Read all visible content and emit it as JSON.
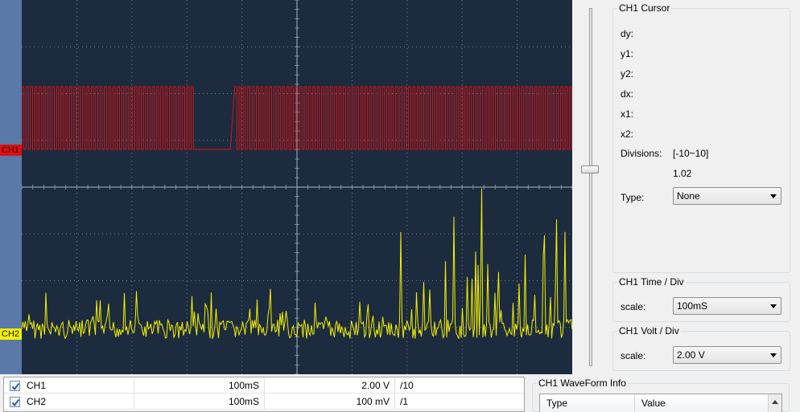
{
  "scope": {
    "channels": [
      {
        "name": "CH1",
        "color": "#e01010"
      },
      {
        "name": "CH2",
        "color": "#f4f000"
      }
    ],
    "background_color": "#1c2b3e",
    "grid_color": "#8aa0b8"
  },
  "cursor_panel": {
    "title": "CH1 Cursor",
    "labels": {
      "dy": "dy:",
      "y1": "y1:",
      "y2": "y2:",
      "dx": "dx:",
      "x1": "x1:",
      "x2": "x2:"
    },
    "divisions_label": "Divisions:",
    "divisions_range": "[-10~10]",
    "divisions_value": "1.02",
    "type_label": "Type:",
    "type_value": "None"
  },
  "time_panel": {
    "title": "CH1 Time / Div",
    "scale_label": "scale:",
    "scale_value": "100mS"
  },
  "volt_panel": {
    "title": "CH1 Volt / Div",
    "scale_label": "scale:",
    "scale_value": "2.00 V"
  },
  "channel_table": {
    "rows": [
      {
        "name": "CH1",
        "time": "100mS",
        "volt": "2.00 V",
        "probe": "/10",
        "checked": true
      },
      {
        "name": "CH2",
        "time": "100mS",
        "volt": "100 mV",
        "probe": "/1",
        "checked": true
      }
    ]
  },
  "waveform_info": {
    "title": "CH1 WaveForm Info",
    "columns": [
      "Type",
      "Value"
    ]
  }
}
